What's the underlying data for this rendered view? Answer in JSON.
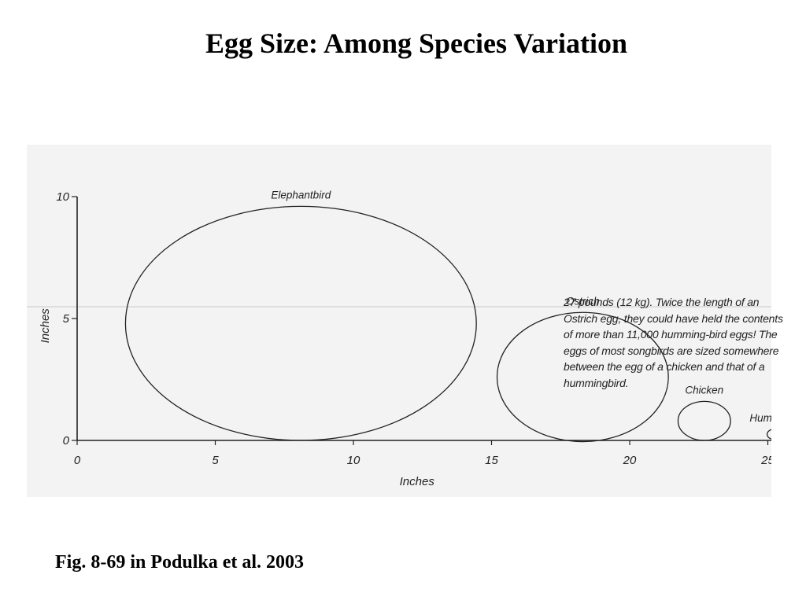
{
  "slide": {
    "title": "Egg Size: Among Species Variation",
    "credit": "Fig. 8-69 in Podulka et al. 2003"
  },
  "figure": {
    "caption_text": "27 pounds (12 kg). Twice the length of an Ostrich egg, they could have held the contents of more than 11,000 humming-bird eggs! The eggs of most songbirds are sized somewhere between the egg of a chicken and that of a hummingbird."
  },
  "chart_data": {
    "type": "scatter",
    "xlabel": "Inches",
    "ylabel": "Inches",
    "xlim": [
      0,
      26
    ],
    "ylim": [
      0,
      10
    ],
    "xticks": [
      "0",
      "5",
      "10",
      "15",
      "20",
      "25"
    ],
    "yticks": [
      "0",
      "5",
      "10"
    ],
    "grid": false,
    "series": [
      {
        "name": "Elephantbird",
        "x_center": 8.1,
        "y_center": 4.8,
        "length": 12.7,
        "width": 9.6
      },
      {
        "name": "Ostrich",
        "x_center": 18.3,
        "y_center": 2.6,
        "length": 6.2,
        "width": 5.3
      },
      {
        "name": "Chicken",
        "x_center": 22.7,
        "y_center": 0.8,
        "length": 1.9,
        "width": 1.6
      },
      {
        "name": "Hummingbird",
        "x_center": 25.2,
        "y_center": 0.25,
        "length": 0.45,
        "width": 0.4
      }
    ]
  }
}
